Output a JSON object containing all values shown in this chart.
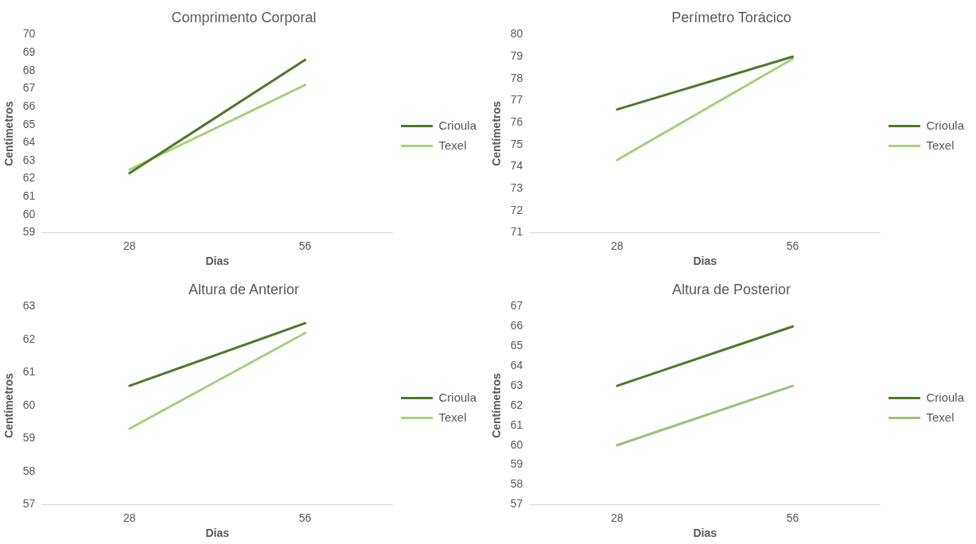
{
  "chart_data": [
    {
      "type": "line",
      "title": "Comprimento Corporal",
      "xlabel": "Dias",
      "ylabel": "Centímetros",
      "categories": [
        "28",
        "56"
      ],
      "ylim": [
        59,
        70
      ],
      "yticks": [
        59,
        60,
        61,
        62,
        63,
        64,
        65,
        66,
        67,
        68,
        69,
        70
      ],
      "grid": false,
      "legend": "right",
      "marker": "none",
      "series": [
        {
          "name": "Crioula",
          "color": "#4e7a27",
          "values": [
            62.3,
            68.6
          ]
        },
        {
          "name": "Texel",
          "color": "#a2d27c",
          "values": [
            62.5,
            67.2
          ]
        }
      ]
    },
    {
      "type": "line",
      "title": "Perímetro Torácico",
      "xlabel": "Dias",
      "ylabel": "Centímetros",
      "categories": [
        "28",
        "56"
      ],
      "ylim": [
        71,
        80
      ],
      "yticks": [
        71,
        72,
        73,
        74,
        75,
        76,
        77,
        78,
        79,
        80
      ],
      "grid": false,
      "legend": "right",
      "marker": "none",
      "series": [
        {
          "name": "Crioula",
          "color": "#4e7a27",
          "values": [
            76.6,
            79.0
          ]
        },
        {
          "name": "Texel",
          "color": "#a2d27c",
          "values": [
            74.3,
            78.9
          ]
        }
      ]
    },
    {
      "type": "line",
      "title": "Altura de Anterior",
      "xlabel": "Dias",
      "ylabel": "Centímetros",
      "categories": [
        "28",
        "56"
      ],
      "ylim": [
        57,
        63
      ],
      "yticks": [
        57,
        58,
        59,
        60,
        61,
        62,
        63
      ],
      "grid": false,
      "legend": "right",
      "marker": "none",
      "series": [
        {
          "name": "Crioula",
          "color": "#4e7a27",
          "values": [
            60.6,
            62.5
          ]
        },
        {
          "name": "Texel",
          "color": "#a2d27c",
          "values": [
            59.3,
            62.2
          ]
        }
      ]
    },
    {
      "type": "line",
      "title": "Altura de Posterior",
      "xlabel": "Dias",
      "ylabel": "Centímetros",
      "categories": [
        "28",
        "56"
      ],
      "ylim": [
        57,
        67
      ],
      "yticks": [
        57,
        58,
        59,
        60,
        61,
        62,
        63,
        64,
        65,
        66,
        67
      ],
      "grid": false,
      "legend": "right",
      "marker": "none",
      "series": [
        {
          "name": "Crioula",
          "color": "#4e7a27",
          "values": [
            63,
            66
          ]
        },
        {
          "name": "Texel",
          "color": "#99c27a",
          "values": [
            60,
            63
          ]
        }
      ]
    }
  ]
}
